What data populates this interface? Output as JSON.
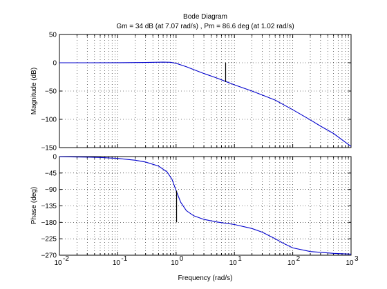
{
  "chart_data": [
    {
      "type": "line",
      "panel": "magnitude",
      "title": "Bode Diagram",
      "subtitle": "Gm = 34 dB (at 7.07 rad/s) ,  Pm = 86.6 deg (at 1.02 rad/s)",
      "xlabel": "Frequency (rad/s)",
      "ylabel": "Magnitude (dB)",
      "xscale": "log",
      "xlim": [
        0.01,
        1000
      ],
      "ylim": [
        -150,
        50
      ],
      "yticks": [
        50,
        0,
        -50,
        -100,
        -150
      ],
      "ytick_labels": [
        "50",
        "0",
        "−50",
        "−100",
        "−150"
      ],
      "grid": true,
      "series": [
        {
          "name": "magnitude",
          "color": "#0000cc",
          "x": [
            0.01,
            0.03,
            0.1,
            0.3,
            0.6,
            0.8,
            1.0,
            1.5,
            2,
            3,
            5,
            7.07,
            10,
            20,
            30,
            50,
            100,
            200,
            300,
            500,
            1000
          ],
          "y": [
            0.0,
            0.0,
            0.1,
            0.5,
            1.1,
            0.8,
            -1.0,
            -7.0,
            -12.0,
            -19.0,
            -27.0,
            -33.0,
            -39.0,
            -50.0,
            -57.0,
            -66.0,
            -83.0,
            -101.0,
            -112.0,
            -125.0,
            -148.0
          ]
        }
      ],
      "markers": [
        {
          "name": "gain-margin",
          "x": 7.07,
          "y_from": -34,
          "y_to": 0
        }
      ]
    },
    {
      "type": "line",
      "panel": "phase",
      "xlabel": "Frequency (rad/s)",
      "ylabel": "Phase (deg)",
      "xscale": "log",
      "xlim": [
        0.01,
        1000
      ],
      "ylim": [
        -270,
        0
      ],
      "yticks": [
        0,
        -45,
        -90,
        -135,
        -180,
        -225,
        -270
      ],
      "ytick_labels": [
        "0",
        "−45",
        "−90",
        "−135",
        "−180",
        "−225",
        "−270"
      ],
      "xtick_labels": [
        {
          "base": "10",
          "exp": "-2"
        },
        {
          "base": "10",
          "exp": "-1"
        },
        {
          "base": "10",
          "exp": "0"
        },
        {
          "base": "10",
          "exp": "1"
        },
        {
          "base": "10",
          "exp": "2"
        },
        {
          "base": "10",
          "exp": "3"
        }
      ],
      "grid": true,
      "series": [
        {
          "name": "phase",
          "color": "#0000cc",
          "x": [
            0.01,
            0.03,
            0.05,
            0.1,
            0.2,
            0.3,
            0.5,
            0.7,
            0.85,
            1.0,
            1.2,
            1.5,
            2,
            3,
            5,
            10,
            20,
            30,
            50,
            70,
            100,
            200,
            500,
            1000
          ],
          "y": [
            -0.5,
            -1.5,
            -2.5,
            -5.0,
            -10.0,
            -15.0,
            -26.0,
            -42.0,
            -62.0,
            -93.0,
            -125.0,
            -148.0,
            -162.0,
            -172.0,
            -179.0,
            -186.0,
            -197.0,
            -207.0,
            -225.0,
            -238.0,
            -250.0,
            -260.0,
            -265.0,
            -267.0
          ]
        }
      ],
      "markers": [
        {
          "name": "phase-margin",
          "x": 1.02,
          "y_from": -180,
          "y_to": -93.4
        }
      ]
    }
  ]
}
